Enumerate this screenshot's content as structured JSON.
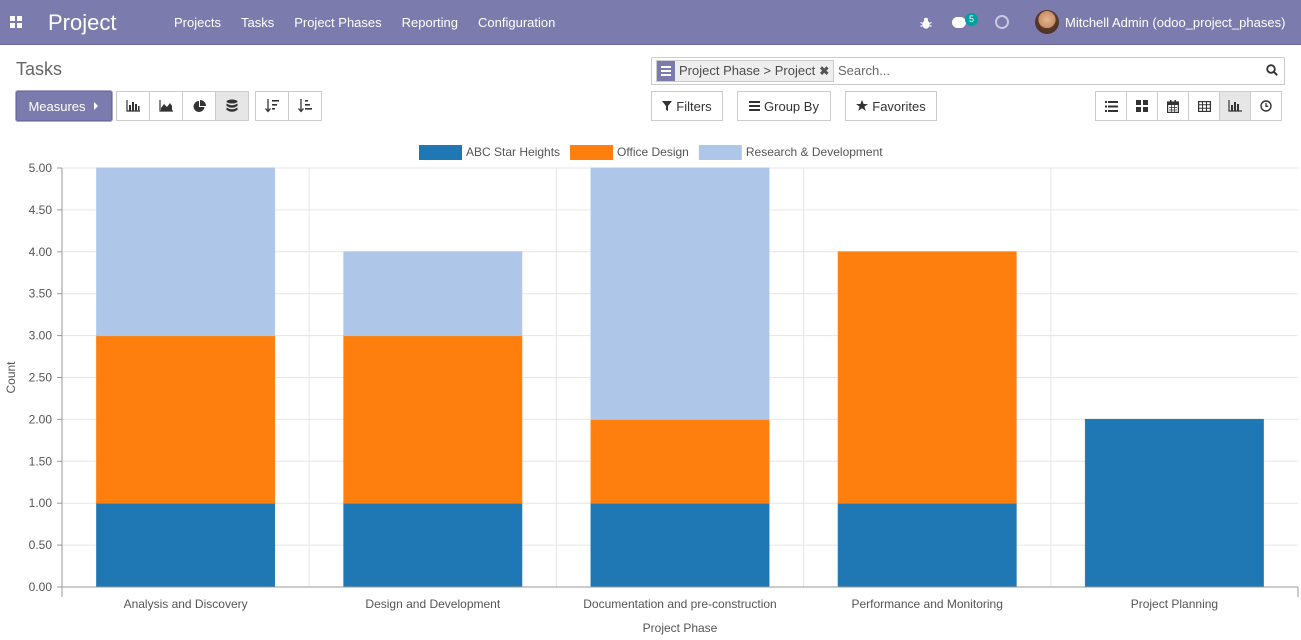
{
  "navbar": {
    "app_title": "Project",
    "menu": [
      "Projects",
      "Tasks",
      "Project Phases",
      "Reporting",
      "Configuration"
    ],
    "message_count": "5",
    "user": "Mitchell Admin (odoo_project_phases)"
  },
  "control_panel": {
    "breadcrumb": "Tasks",
    "measures_label": "Measures",
    "search": {
      "facet": "Project Phase > Project",
      "placeholder": "Search..."
    },
    "filters_label": "Filters",
    "groupby_label": "Group By",
    "favorites_label": "Favorites",
    "chart_mode_icons": [
      "bar-chart-icon",
      "line-chart-icon",
      "pie-chart-icon",
      "stacked-icon"
    ],
    "sort_icons": [
      "sort-descending-icon",
      "sort-ascending-icon"
    ],
    "view_icons": [
      "list-view-icon",
      "kanban-view-icon",
      "calendar-view-icon",
      "pivot-view-icon",
      "graph-view-icon",
      "activity-view-icon"
    ],
    "active_view": "graph"
  },
  "colors": {
    "navbar": "#7c7bad",
    "series": [
      "#1f77b4",
      "#ff7f0e",
      "#aec7e8"
    ]
  },
  "chart_data": {
    "type": "bar",
    "stacked": true,
    "categories": [
      "Analysis and Discovery",
      "Design and Development",
      "Documentation and pre-construction",
      "Performance and Monitoring",
      "Project Planning"
    ],
    "series": [
      {
        "name": "ABC Star Heights",
        "values": [
          1,
          1,
          1,
          1,
          2
        ]
      },
      {
        "name": "Office Design",
        "values": [
          2,
          2,
          1,
          3,
          0
        ]
      },
      {
        "name": "Research & Development",
        "values": [
          2,
          1,
          3,
          0,
          0
        ]
      }
    ],
    "ylim": [
      0,
      5
    ],
    "yticks": [
      "0.00",
      "0.50",
      "1.00",
      "1.50",
      "2.00",
      "2.50",
      "3.00",
      "3.50",
      "4.00",
      "4.50",
      "5.00"
    ],
    "xlabel": "Project Phase",
    "ylabel": "Count",
    "legend_position": "top-center",
    "grid": true
  }
}
